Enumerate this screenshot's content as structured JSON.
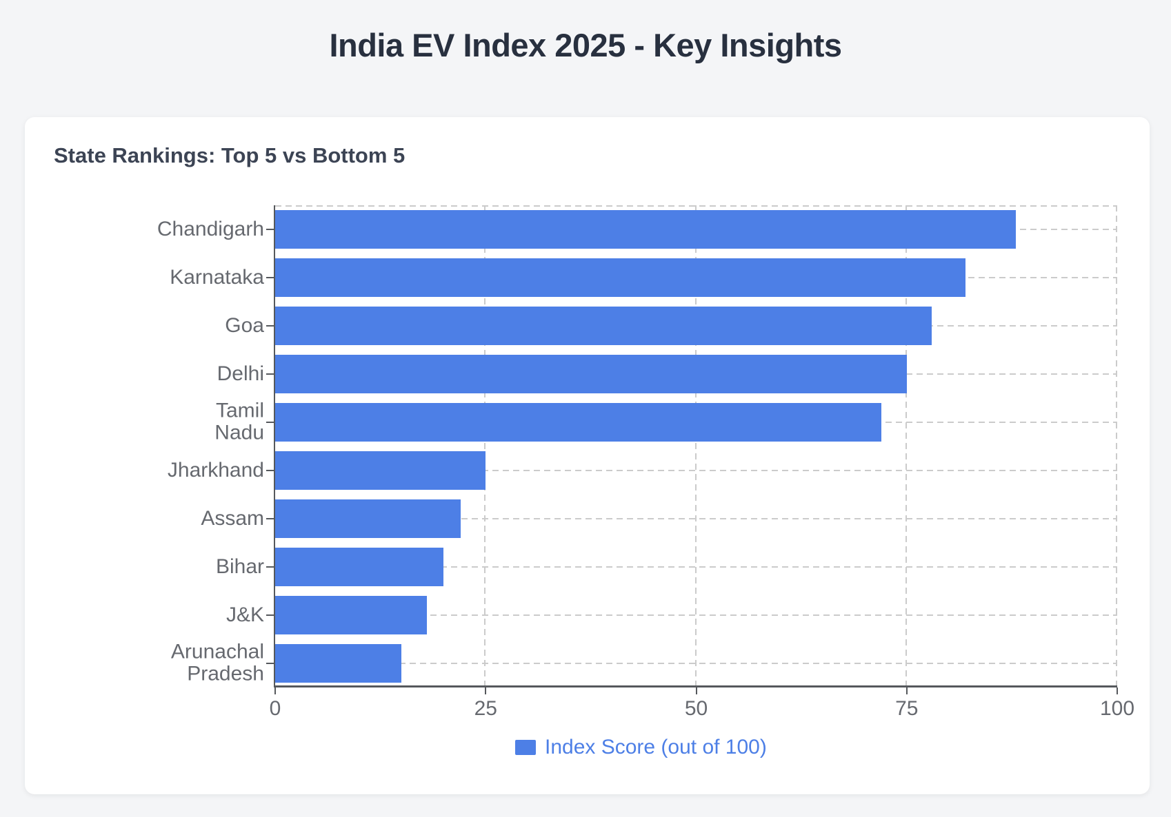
{
  "page": {
    "title": "India EV Index 2025 - Key Insights"
  },
  "card": {
    "heading": "State Rankings: Top 5 vs Bottom 5"
  },
  "legend": {
    "label": "Index Score (out of 100)",
    "position": "bottom"
  },
  "colors": {
    "bar": "#4d7fe6",
    "legend_text": "#4d7fe6",
    "axis_line": "#55585c",
    "grid_line": "#cbcbcb",
    "tick_label": "#66696f",
    "title_text": "#28303f",
    "heading_text": "#3c4454",
    "page_bg": "#f4f5f7",
    "card_bg": "#ffffff"
  },
  "chart_data": {
    "type": "bar",
    "orientation": "horizontal",
    "title": "State Rankings: Top 5 vs Bottom 5",
    "categories": [
      "Chandigarh",
      "Karnataka",
      "Goa",
      "Delhi",
      "Tamil\nNadu",
      "Jharkhand",
      "Assam",
      "Bihar",
      "J&K",
      "Arunachal\nPradesh"
    ],
    "values": [
      88,
      82,
      78,
      75,
      72,
      25,
      22,
      20,
      18,
      15
    ],
    "series_label": "Index Score (out of 100)",
    "xlabel": "",
    "ylabel": "",
    "xlim": [
      0,
      100
    ],
    "x_ticks": [
      0,
      25,
      50,
      75,
      100
    ],
    "grid": "dashed",
    "legend_position": "bottom"
  }
}
